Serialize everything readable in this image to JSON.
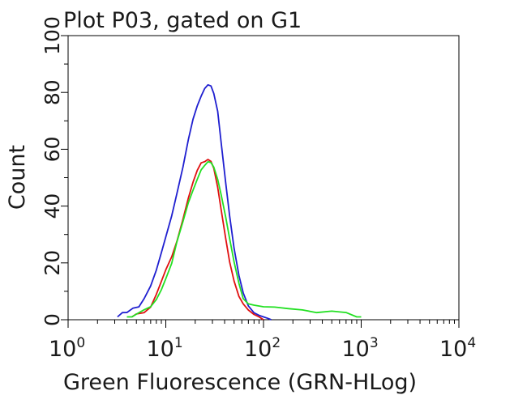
{
  "chart_data": {
    "type": "line",
    "title": "Plot P03, gated on G1",
    "xlabel": "Green Fluorescence (GRN-HLog)",
    "ylabel": "Count",
    "x_scale": "log",
    "xlim": [
      1,
      10000
    ],
    "ylim": [
      0,
      100
    ],
    "x_ticks": [
      {
        "base": "10",
        "exp": "0",
        "value": 1
      },
      {
        "base": "10",
        "exp": "1",
        "value": 10
      },
      {
        "base": "10",
        "exp": "2",
        "value": 100
      },
      {
        "base": "10",
        "exp": "3",
        "value": 1000
      },
      {
        "base": "10",
        "exp": "4",
        "value": 10000
      }
    ],
    "y_ticks": [
      "0",
      "20",
      "40",
      "60",
      "80",
      "100"
    ],
    "grid": false,
    "legend": "none",
    "series": [
      {
        "color": "#1f1fd0",
        "x": [
          3.2,
          3.6,
          4.0,
          4.6,
          5.3,
          6.0,
          7.0,
          8.0,
          9.0,
          10.0,
          11.5,
          13.0,
          15.0,
          17.0,
          19.0,
          21.0,
          23.0,
          25.0,
          27.0,
          29.0,
          31.0,
          34.0,
          37.0,
          41.0,
          45.0,
          50.0,
          56.0,
          62.0,
          70.0,
          80.0,
          90.0,
          100.0,
          110.0,
          120.0
        ],
        "y": [
          1,
          2,
          2,
          4,
          5,
          8,
          12,
          17,
          23,
          29,
          37,
          45,
          54,
          63,
          70,
          75,
          79,
          82,
          83,
          82,
          79,
          73,
          62,
          49,
          37,
          25,
          15,
          9,
          5,
          3,
          2,
          1,
          0.5,
          0
        ]
      },
      {
        "color": "#e01010",
        "x": [
          4.5,
          5.0,
          6.0,
          7.0,
          8.0,
          9.0,
          10.0,
          11.5,
          13.0,
          15.0,
          17.0,
          19.0,
          21.0,
          23.0,
          25.0,
          27.0,
          29.0,
          31.0,
          34.0,
          37.0,
          41.0,
          45.0,
          50.0,
          56.0,
          62.0,
          70.0,
          80.0,
          90.0,
          100.0
        ],
        "y": [
          1,
          2,
          3,
          5,
          9,
          13,
          17,
          22,
          28,
          36,
          43,
          48,
          52,
          55,
          56,
          57,
          56,
          53,
          46,
          38,
          29,
          21,
          14,
          8,
          5,
          3,
          2,
          1,
          0
        ]
      },
      {
        "color": "#22e022",
        "x": [
          4.0,
          4.5,
          5.0,
          6.0,
          7.0,
          8.0,
          9.0,
          10.0,
          11.5,
          13.0,
          15.0,
          17.0,
          19.0,
          21.0,
          23.0,
          25.0,
          27.0,
          29.0,
          31.0,
          34.0,
          37.0,
          41.0,
          45.0,
          50.0,
          56.0,
          62.0,
          70.0,
          80.0,
          100.0,
          130.0,
          180.0,
          250.0,
          350.0,
          500.0,
          700.0,
          900.0,
          1000.0
        ],
        "y": [
          1,
          1,
          2,
          3,
          4,
          7,
          11,
          15,
          20,
          27,
          34,
          41,
          46,
          50,
          53,
          54,
          55,
          55,
          54,
          50,
          44,
          36,
          28,
          20,
          13,
          8,
          6,
          5,
          4,
          4,
          4,
          4,
          3,
          3,
          2,
          1,
          1
        ]
      }
    ]
  }
}
